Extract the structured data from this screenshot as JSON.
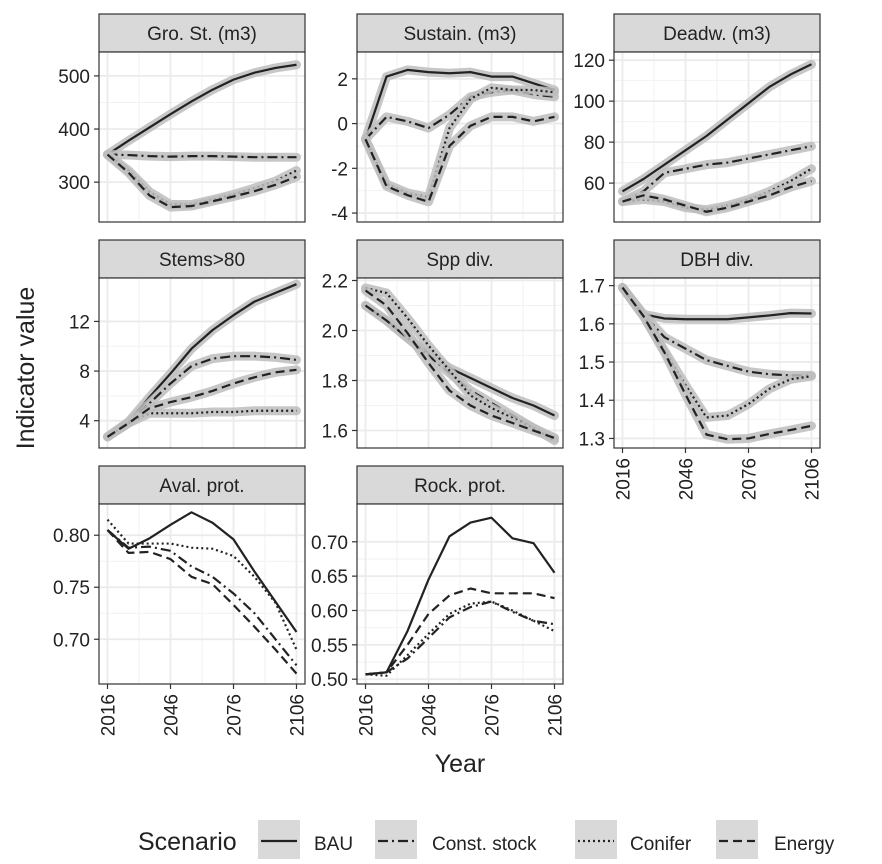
{
  "chart_data": {
    "type": "line",
    "ylabel": "Indicator value",
    "xlabel": "Year",
    "legend": {
      "title": "Scenario",
      "placement": "bottom",
      "entries": [
        {
          "label": "BAU",
          "dash": "solid"
        },
        {
          "label": "Const. stock",
          "dash": "dashdot"
        },
        {
          "label": "Conifer",
          "dash": "dotted"
        },
        {
          "label": "Energy",
          "dash": "dashed"
        }
      ]
    },
    "colors": {
      "line": "#222222",
      "ribbon": "#bdbdbd",
      "strip_fill": "#d9d9d9",
      "grid": "#ebebeb",
      "border": "#333333"
    },
    "grid": true,
    "x": [
      2016,
      2026,
      2036,
      2046,
      2056,
      2066,
      2076,
      2086,
      2096,
      2106
    ],
    "x_ticks": [
      2016,
      2046,
      2076,
      2106
    ],
    "panels": [
      {
        "title": "Gro. St. (m3)",
        "ylim": [
          225,
          545
        ],
        "y_ticks": [
          300,
          400,
          500
        ],
        "ribbon": true,
        "series": [
          {
            "name": "BAU",
            "values": [
              352,
              378,
              403,
              428,
              452,
              474,
              493,
              506,
              515,
              521
            ]
          },
          {
            "name": "Const. stock",
            "values": [
              352,
              351,
              349,
              348,
              349,
              349,
              348,
              347,
              347,
              347
            ]
          },
          {
            "name": "Conifer",
            "values": [
              352,
              322,
              282,
              258,
              258,
              267,
              277,
              289,
              302,
              322
            ]
          },
          {
            "name": "Energy",
            "values": [
              352,
              318,
              275,
              253,
              255,
              264,
              273,
              283,
              295,
              310
            ]
          }
        ]
      },
      {
        "title": "Sustain. (m3)",
        "ylim": [
          -4.4,
          3.2
        ],
        "y_ticks": [
          -4,
          -2,
          0,
          2
        ],
        "ribbon": true,
        "series": [
          {
            "name": "BAU",
            "values": [
              -0.7,
              2.1,
              2.4,
              2.3,
              2.25,
              2.3,
              2.1,
              2.1,
              1.8,
              1.5
            ]
          },
          {
            "name": "Const. stock",
            "values": [
              -0.7,
              0.3,
              0.1,
              -0.2,
              0.4,
              1.2,
              1.4,
              1.5,
              1.3,
              1.2
            ]
          },
          {
            "name": "Conifer",
            "values": [
              -0.7,
              -2.7,
              -3.1,
              -3.3,
              -0.2,
              1.1,
              1.6,
              1.5,
              1.5,
              1.4
            ]
          },
          {
            "name": "Energy",
            "values": [
              -0.7,
              -2.8,
              -3.2,
              -3.5,
              -1.0,
              -0.1,
              0.3,
              0.3,
              0.1,
              0.3
            ]
          }
        ]
      },
      {
        "title": "Deadw. (m3)",
        "ylim": [
          41,
          124
        ],
        "y_ticks": [
          60,
          80,
          100,
          120
        ],
        "ribbon": true,
        "series": [
          {
            "name": "BAU",
            "values": [
              56,
              62,
              69,
              76,
              83,
              91,
              99,
              107,
              113,
              118
            ]
          },
          {
            "name": "Const. stock",
            "values": [
              51,
              56,
              65,
              67,
              69,
              70,
              72,
              74,
              76,
              78
            ]
          },
          {
            "name": "Conifer",
            "values": [
              51,
              52,
              51,
              48,
              47,
              49,
              52,
              56,
              61,
              67
            ]
          },
          {
            "name": "Energy",
            "values": [
              51,
              54,
              52,
              49,
              46,
              48,
              51,
              54,
              58,
              61
            ]
          }
        ]
      },
      {
        "title": "Stems>80",
        "ylim": [
          1.8,
          15.5
        ],
        "y_ticks": [
          4,
          8,
          12
        ],
        "ribbon": true,
        "series": [
          {
            "name": "BAU",
            "values": [
              2.7,
              3.9,
              5.9,
              7.8,
              9.8,
              11.3,
              12.5,
              13.6,
              14.3,
              15.0
            ]
          },
          {
            "name": "Const. stock",
            "values": [
              2.7,
              3.9,
              5.4,
              7.0,
              8.4,
              9.0,
              9.2,
              9.2,
              9.1,
              8.9
            ]
          },
          {
            "name": "Conifer",
            "values": [
              2.7,
              3.8,
              4.6,
              4.6,
              4.6,
              4.7,
              4.7,
              4.8,
              4.8,
              4.8
            ]
          },
          {
            "name": "Energy",
            "values": [
              2.7,
              3.8,
              5.0,
              5.5,
              5.9,
              6.4,
              7.0,
              7.5,
              7.9,
              8.1
            ]
          }
        ]
      },
      {
        "title": "Spp div.",
        "ylim": [
          1.53,
          2.21
        ],
        "y_ticks": [
          1.6,
          1.8,
          2.0,
          2.2
        ],
        "ribbon": true,
        "series": [
          {
            "name": "BAU",
            "values": [
              2.1,
              2.04,
              1.97,
              1.91,
              1.85,
              1.81,
              1.77,
              1.73,
              1.7,
              1.66
            ]
          },
          {
            "name": "Const. stock",
            "values": [
              2.1,
              2.04,
              1.97,
              1.9,
              1.83,
              1.76,
              1.71,
              1.66,
              1.61,
              1.57
            ]
          },
          {
            "name": "Conifer",
            "values": [
              2.17,
              2.15,
              2.05,
              1.94,
              1.84,
              1.74,
              1.69,
              1.65,
              1.61,
              1.56
            ]
          },
          {
            "name": "Energy",
            "values": [
              2.16,
              2.1,
              1.99,
              1.87,
              1.76,
              1.7,
              1.66,
              1.63,
              1.6,
              1.57
            ]
          }
        ]
      },
      {
        "title": "DBH div.",
        "ylim": [
          1.275,
          1.72
        ],
        "y_ticks": [
          1.3,
          1.4,
          1.5,
          1.6,
          1.7
        ],
        "ribbon": true,
        "series": [
          {
            "name": "BAU",
            "values": [
              1.695,
              1.625,
              1.614,
              1.612,
              1.612,
              1.612,
              1.617,
              1.622,
              1.628,
              1.627
            ]
          },
          {
            "name": "Const. stock",
            "values": [
              1.695,
              1.625,
              1.565,
              1.535,
              1.505,
              1.49,
              1.475,
              1.468,
              1.465,
              1.465
            ]
          },
          {
            "name": "Conifer",
            "values": [
              1.695,
              1.62,
              1.53,
              1.44,
              1.355,
              1.36,
              1.39,
              1.43,
              1.455,
              1.463
            ]
          },
          {
            "name": "Energy",
            "values": [
              1.695,
              1.62,
              1.525,
              1.415,
              1.31,
              1.298,
              1.3,
              1.312,
              1.322,
              1.333
            ]
          }
        ]
      },
      {
        "title": "Aval. prot.",
        "ylim": [
          0.657,
          0.83
        ],
        "y_ticks": [
          0.7,
          0.75,
          0.8
        ],
        "ribbon": false,
        "series": [
          {
            "name": "BAU",
            "values": [
              0.805,
              0.787,
              0.797,
              0.81,
              0.822,
              0.812,
              0.796,
              0.765,
              0.736,
              0.707
            ]
          },
          {
            "name": "Const. stock",
            "values": [
              0.805,
              0.788,
              0.789,
              0.785,
              0.77,
              0.76,
              0.744,
              0.725,
              0.7,
              0.675
            ]
          },
          {
            "name": "Conifer",
            "values": [
              0.815,
              0.792,
              0.792,
              0.792,
              0.788,
              0.787,
              0.78,
              0.76,
              0.735,
              0.69
            ]
          },
          {
            "name": "Energy",
            "values": [
              0.805,
              0.783,
              0.784,
              0.777,
              0.76,
              0.753,
              0.733,
              0.712,
              0.69,
              0.667
            ]
          }
        ]
      },
      {
        "title": "Rock. prot.",
        "ylim": [
          0.493,
          0.755
        ],
        "y_ticks": [
          0.5,
          0.55,
          0.6,
          0.65,
          0.7
        ],
        "ribbon": false,
        "series": [
          {
            "name": "BAU",
            "values": [
              0.507,
              0.51,
              0.57,
              0.645,
              0.708,
              0.728,
              0.735,
              0.705,
              0.698,
              0.655
            ]
          },
          {
            "name": "Const. stock",
            "values": [
              0.507,
              0.51,
              0.53,
              0.56,
              0.59,
              0.605,
              0.613,
              0.598,
              0.585,
              0.58
            ]
          },
          {
            "name": "Conifer",
            "values": [
              0.507,
              0.505,
              0.535,
              0.566,
              0.595,
              0.61,
              0.613,
              0.6,
              0.585,
              0.57
            ]
          },
          {
            "name": "Energy",
            "values": [
              0.507,
              0.51,
              0.55,
              0.595,
              0.622,
              0.632,
              0.625,
              0.625,
              0.625,
              0.618
            ]
          }
        ]
      }
    ]
  }
}
